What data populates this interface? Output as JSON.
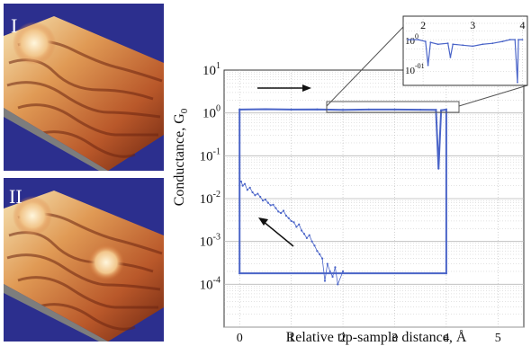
{
  "panels": [
    {
      "label": "I"
    },
    {
      "label": "II"
    }
  ],
  "colors": {
    "series": "#4a64c8",
    "panel_bg": "#2c2f8e",
    "surface_light": "#f6e4b4",
    "surface_mid": "#d9793a",
    "surface_dark": "#6b2410",
    "grid": "#b8b8b8"
  },
  "chart_data": [
    {
      "type": "scatter",
      "title": "",
      "xlabel": "Relative tip-sample distance, Å",
      "ylabel": "Conductance, G",
      "ylabel_subscript": "0",
      "yscale": "log",
      "xlim": [
        -0.3,
        5.5
      ],
      "ylim": [
        1e-05,
        10
      ],
      "xticks": [
        "0",
        "1",
        "2",
        "3",
        "4",
        "5"
      ],
      "yticks": [
        {
          "base": "10",
          "exp": "1"
        },
        {
          "base": "10",
          "exp": "0"
        },
        {
          "base": "10",
          "exp": "-1"
        },
        {
          "base": "10",
          "exp": "-2"
        },
        {
          "base": "10",
          "exp": "-3"
        },
        {
          "base": "10",
          "exp": "-4"
        }
      ],
      "grid": true,
      "arrows": [
        {
          "direction": "right",
          "meaning": "approach"
        },
        {
          "direction": "up-left",
          "meaning": "retraction"
        }
      ],
      "series": [
        {
          "points": [
            [
              0.0,
              1.2
            ],
            [
              0.5,
              1.22
            ],
            [
              1.0,
              1.2
            ],
            [
              1.5,
              1.21
            ],
            [
              2.0,
              1.18
            ],
            [
              2.5,
              1.2
            ],
            [
              3.0,
              1.2
            ],
            [
              3.5,
              1.19
            ],
            [
              3.8,
              1.18
            ],
            [
              3.85,
              0.05
            ],
            [
              3.9,
              1.15
            ],
            [
              4.0,
              1.2
            ],
            [
              4.0,
              0.00018
            ],
            [
              0.0,
              0.00018
            ],
            [
              0.0,
              1.2
            ]
          ]
        },
        {
          "points": [
            [
              0.03,
              0.025
            ],
            [
              0.06,
              0.02
            ],
            [
              0.1,
              0.022
            ],
            [
              0.15,
              0.016
            ],
            [
              0.2,
              0.018
            ],
            [
              0.25,
              0.014
            ],
            [
              0.3,
              0.012
            ],
            [
              0.35,
              0.013
            ],
            [
              0.4,
              0.011
            ],
            [
              0.45,
              0.009
            ],
            [
              0.5,
              0.0095
            ],
            [
              0.55,
              0.008
            ],
            [
              0.6,
              0.007
            ],
            [
              0.65,
              0.0072
            ],
            [
              0.7,
              0.006
            ],
            [
              0.75,
              0.005
            ],
            [
              0.8,
              0.0046
            ],
            [
              0.85,
              0.0052
            ],
            [
              0.9,
              0.004
            ],
            [
              0.95,
              0.0035
            ],
            [
              1.0,
              0.003
            ],
            [
              1.05,
              0.0028
            ],
            [
              1.1,
              0.0022
            ],
            [
              1.15,
              0.0025
            ],
            [
              1.2,
              0.0018
            ],
            [
              1.25,
              0.0015
            ],
            [
              1.3,
              0.0012
            ],
            [
              1.35,
              0.0014
            ],
            [
              1.4,
              0.001
            ],
            [
              1.45,
              0.0008
            ],
            [
              1.5,
              0.0006
            ],
            [
              1.55,
              0.0005
            ],
            [
              1.6,
              0.0004
            ],
            [
              1.65,
              0.00012
            ],
            [
              1.7,
              0.0003
            ],
            [
              1.75,
              0.0002
            ],
            [
              1.8,
              0.00015
            ],
            [
              1.85,
              0.00025
            ],
            [
              1.9,
              0.0001
            ],
            [
              2.0,
              0.0002
            ]
          ]
        }
      ]
    },
    {
      "type": "line",
      "role": "inset",
      "xlim": [
        1.6,
        4.1
      ],
      "ylim": [
        0.6,
        1.3
      ],
      "yscale": "log",
      "xticks": [
        "2",
        "3",
        "4"
      ],
      "yticks": [
        {
          "base": "10",
          "exp": "0"
        },
        {
          "base": "10",
          "exp": "-01"
        }
      ],
      "series": [
        {
          "points": [
            [
              1.7,
              1.0
            ],
            [
              1.9,
              1.0
            ],
            [
              2.05,
              0.98
            ],
            [
              2.1,
              0.75
            ],
            [
              2.15,
              0.97
            ],
            [
              2.3,
              0.95
            ],
            [
              2.5,
              0.96
            ],
            [
              2.55,
              0.82
            ],
            [
              2.6,
              0.95
            ],
            [
              2.8,
              0.94
            ],
            [
              3.0,
              0.93
            ],
            [
              3.2,
              0.95
            ],
            [
              3.4,
              0.96
            ],
            [
              3.6,
              0.98
            ],
            [
              3.75,
              1.0
            ],
            [
              3.85,
              1.0
            ],
            [
              3.9,
              0.62
            ],
            [
              3.92,
              1.0
            ],
            [
              4.0,
              1.0
            ]
          ]
        }
      ]
    }
  ]
}
